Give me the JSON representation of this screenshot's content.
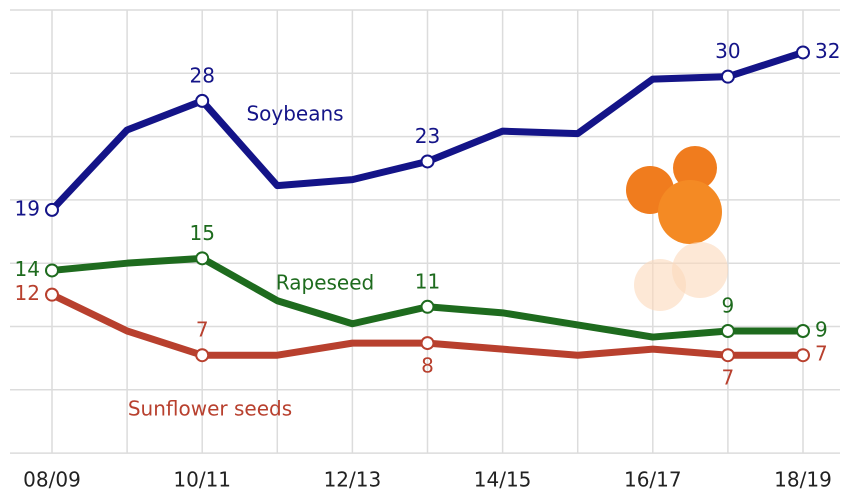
{
  "chart_data": {
    "type": "line",
    "categories": [
      "08/09",
      null,
      "10/11",
      null,
      "12/13",
      null,
      "14/15",
      null,
      "16/17",
      null,
      "18/19"
    ],
    "ylim": [
      0,
      36
    ],
    "series": [
      {
        "name": "Soybeans",
        "color": "#141488",
        "values": [
          19,
          25.6,
          28,
          21,
          21.5,
          23,
          25.5,
          25.3,
          29.8,
          30,
          32
        ],
        "value_labels": [
          "19",
          null,
          "28",
          null,
          null,
          "23",
          null,
          null,
          null,
          "30",
          "32"
        ]
      },
      {
        "name": "Rapeseed",
        "color": "#1e6b1e",
        "values": [
          14,
          14.6,
          15,
          11.5,
          9.6,
          11,
          10.5,
          9.5,
          8.5,
          9,
          9
        ],
        "value_labels": [
          "14",
          null,
          "15",
          null,
          null,
          "11",
          null,
          null,
          null,
          "9",
          "9"
        ]
      },
      {
        "name": "Sunflower seeds",
        "color": "#b8402e",
        "values": [
          12,
          9,
          7,
          7,
          8,
          8,
          7.5,
          7,
          7.5,
          7,
          7
        ],
        "value_labels": [
          "12",
          null,
          "7",
          null,
          null,
          "8",
          null,
          null,
          null,
          "7",
          "7"
        ]
      }
    ]
  }
}
